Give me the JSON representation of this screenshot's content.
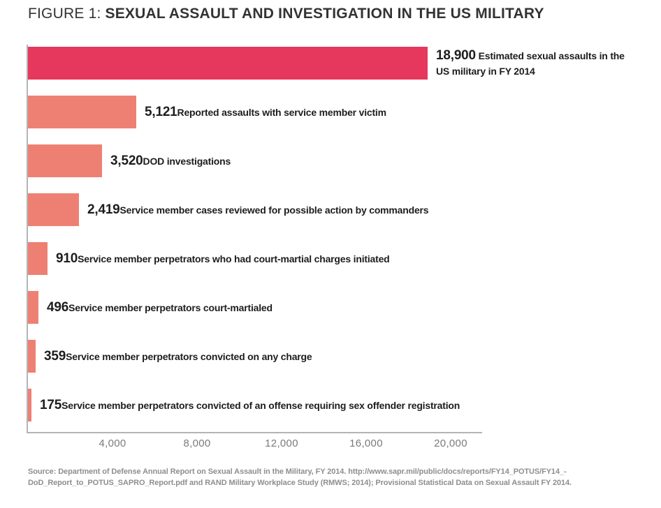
{
  "title": {
    "prefix": "FIGURE 1:",
    "main": " SEXUAL ASSAULT AND INVESTIGATION IN THE US MILITARY"
  },
  "chart_data": {
    "type": "bar",
    "orientation": "horizontal",
    "title": "FIGURE 1: SEXUAL ASSAULT AND INVESTIGATION IN THE US MILITARY",
    "xlim": [
      0,
      20000
    ],
    "grid": false,
    "x_ticks": [
      {
        "value": 4000,
        "label": "4,000"
      },
      {
        "value": 8000,
        "label": "8,000"
      },
      {
        "value": 12000,
        "label": "12,000"
      },
      {
        "value": 16000,
        "label": "16,000"
      },
      {
        "value": 20000,
        "label": "20,000"
      }
    ],
    "bars": [
      {
        "value": 18900,
        "value_label": "18,900",
        "description": "Estimated sexual assaults in the US military in FY 2014",
        "color": "#e5385c",
        "wrap": true
      },
      {
        "value": 5121,
        "value_label": "5,121",
        "description": "Reported assaults with service member victim",
        "color": "#ee8073",
        "wrap": false
      },
      {
        "value": 3520,
        "value_label": "3,520",
        "description": "DOD investigations",
        "color": "#ee8073",
        "wrap": false
      },
      {
        "value": 2419,
        "value_label": "2,419",
        "description": "Service member cases reviewed for possible action by commanders",
        "color": "#ee8073",
        "wrap": false
      },
      {
        "value": 910,
        "value_label": "910",
        "description": "Service member perpetrators who had court-martial charges initiated",
        "color": "#ee8073",
        "wrap": false
      },
      {
        "value": 496,
        "value_label": "496",
        "description": "Service member perpetrators court-martialed",
        "color": "#ee8073",
        "wrap": false
      },
      {
        "value": 359,
        "value_label": "359",
        "description": "Service member perpetrators convicted on any charge",
        "color": "#ee8073",
        "wrap": false
      },
      {
        "value": 175,
        "value_label": "175",
        "description": "Service member perpetrators convicted of an offense requiring sex offender registration",
        "color": "#ee8073",
        "wrap": false
      }
    ]
  },
  "colors": {
    "bar_emphasis": "#e5385c",
    "bar_default": "#ee8073",
    "axis": "#b4b4b6",
    "tick_text": "#7a7a7e",
    "label_text": "#1d1d1f",
    "source_text": "#8e8e90"
  },
  "source": {
    "line1": "Source: Department of Defense Annual Report on Sexual Assault in the Military, FY 2014. http://www.sapr.mil/public/docs/reports/FY14_POTUS/FY14_-",
    "line2": "DoD_Report_to_POTUS_SAPRO_Report.pdf and RAND Military Workplace Study (RMWS; 2014); Provisional Statistical Data on Sexual Assault FY 2014."
  }
}
